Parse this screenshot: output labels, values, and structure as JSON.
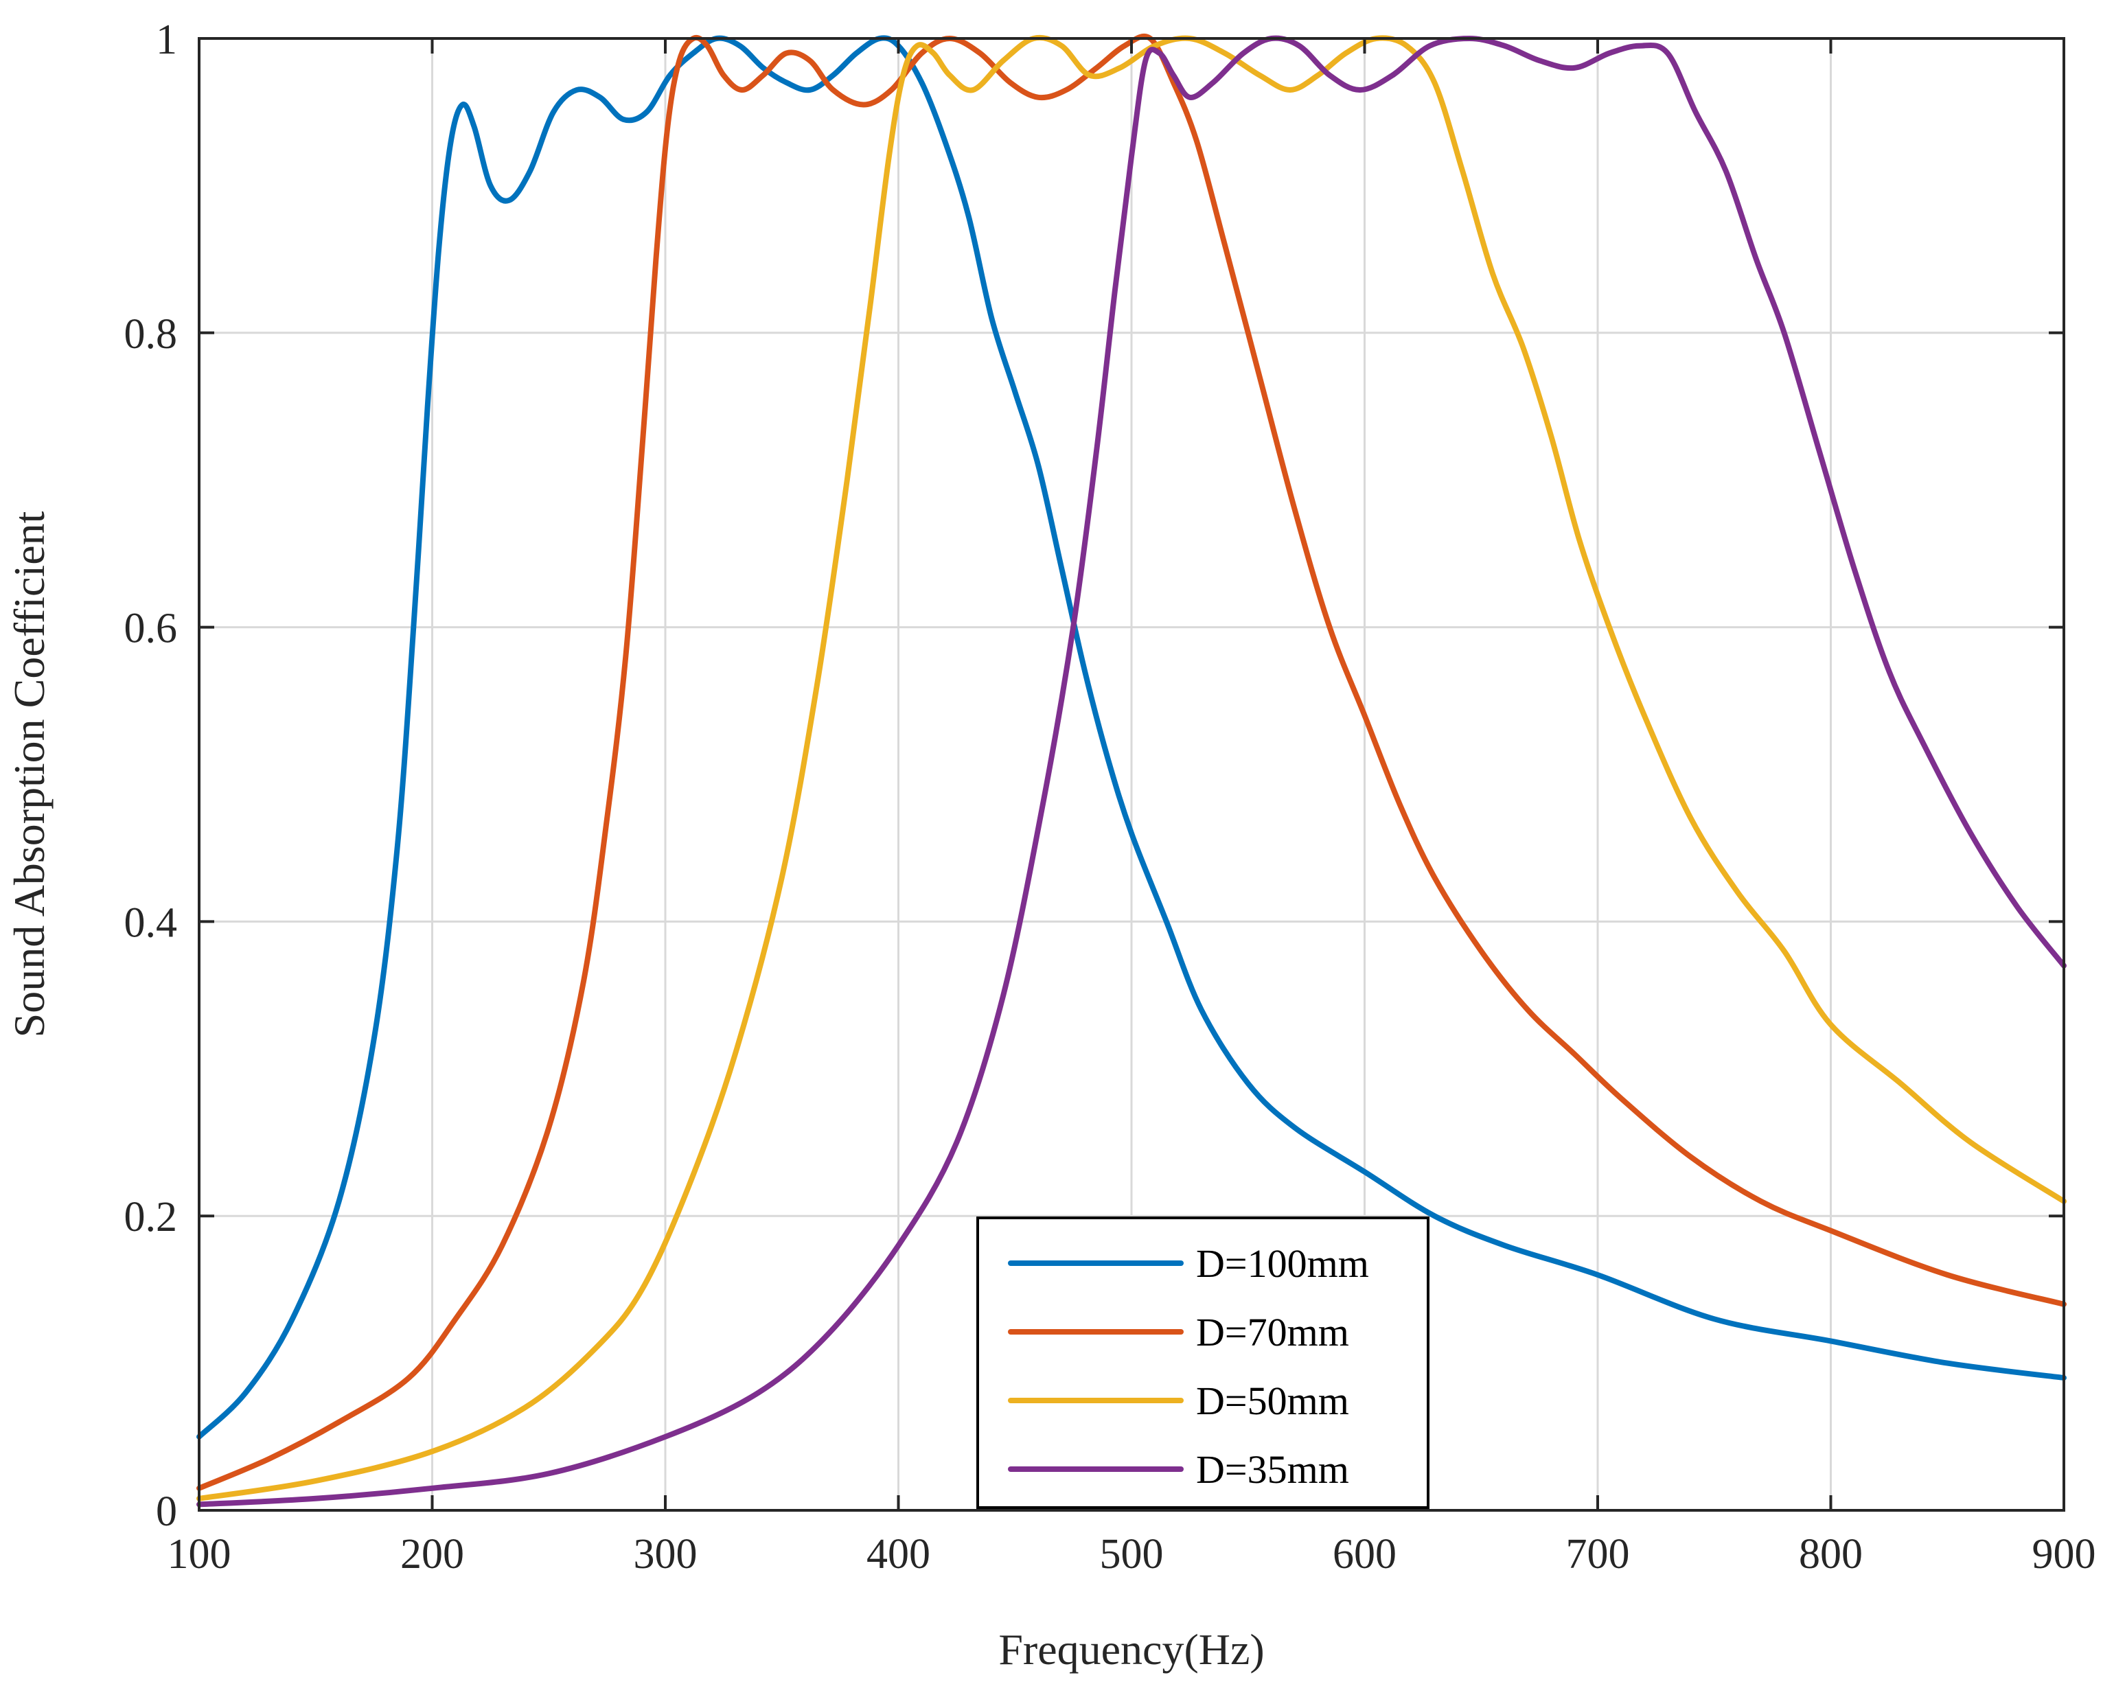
{
  "chart_data": {
    "type": "line",
    "title": "",
    "xlabel": "Frequency(Hz)",
    "ylabel": "Sound Absorption Coefficient",
    "xlim": [
      100,
      900
    ],
    "ylim": [
      0,
      1
    ],
    "x_ticks": [
      100,
      200,
      300,
      400,
      500,
      600,
      700,
      800,
      900
    ],
    "y_ticks": [
      0,
      0.2,
      0.4,
      0.6,
      0.8,
      1
    ],
    "y_tick_labels": [
      "0",
      "0.2",
      "0.4",
      "0.6",
      "0.8",
      "1"
    ],
    "grid": true,
    "legend_position": "bottom-center",
    "series": [
      {
        "name": "D=100mm",
        "color": "#0072BD",
        "points": [
          [
            100,
            0.05
          ],
          [
            120,
            0.08
          ],
          [
            140,
            0.13
          ],
          [
            160,
            0.21
          ],
          [
            175,
            0.32
          ],
          [
            185,
            0.45
          ],
          [
            192,
            0.6
          ],
          [
            198,
            0.75
          ],
          [
            203,
            0.86
          ],
          [
            208,
            0.93
          ],
          [
            213,
            0.955
          ],
          [
            218,
            0.94
          ],
          [
            225,
            0.9
          ],
          [
            233,
            0.89
          ],
          [
            242,
            0.91
          ],
          [
            252,
            0.95
          ],
          [
            262,
            0.965
          ],
          [
            272,
            0.96
          ],
          [
            282,
            0.945
          ],
          [
            292,
            0.95
          ],
          [
            302,
            0.975
          ],
          [
            312,
            0.99
          ],
          [
            322,
            1.0
          ],
          [
            332,
            0.995
          ],
          [
            342,
            0.98
          ],
          [
            352,
            0.97
          ],
          [
            362,
            0.965
          ],
          [
            372,
            0.975
          ],
          [
            382,
            0.99
          ],
          [
            392,
            1.0
          ],
          [
            400,
            0.995
          ],
          [
            410,
            0.97
          ],
          [
            420,
            0.93
          ],
          [
            430,
            0.88
          ],
          [
            440,
            0.81
          ],
          [
            450,
            0.76
          ],
          [
            460,
            0.71
          ],
          [
            470,
            0.64
          ],
          [
            480,
            0.57
          ],
          [
            490,
            0.51
          ],
          [
            500,
            0.46
          ],
          [
            515,
            0.4
          ],
          [
            530,
            0.34
          ],
          [
            550,
            0.29
          ],
          [
            570,
            0.26
          ],
          [
            600,
            0.23
          ],
          [
            630,
            0.2
          ],
          [
            660,
            0.18
          ],
          [
            700,
            0.16
          ],
          [
            750,
            0.13
          ],
          [
            800,
            0.115
          ],
          [
            850,
            0.1
          ],
          [
            900,
            0.09
          ]
        ]
      },
      {
        "name": "D=70mm",
        "color": "#D95319",
        "points": [
          [
            100,
            0.015
          ],
          [
            130,
            0.035
          ],
          [
            160,
            0.06
          ],
          [
            190,
            0.09
          ],
          [
            210,
            0.13
          ],
          [
            230,
            0.18
          ],
          [
            250,
            0.26
          ],
          [
            265,
            0.36
          ],
          [
            275,
            0.47
          ],
          [
            283,
            0.58
          ],
          [
            290,
            0.72
          ],
          [
            296,
            0.85
          ],
          [
            301,
            0.94
          ],
          [
            306,
            0.985
          ],
          [
            312,
            1.0
          ],
          [
            318,
            0.995
          ],
          [
            325,
            0.975
          ],
          [
            333,
            0.965
          ],
          [
            342,
            0.975
          ],
          [
            352,
            0.99
          ],
          [
            362,
            0.985
          ],
          [
            372,
            0.965
          ],
          [
            385,
            0.955
          ],
          [
            397,
            0.965
          ],
          [
            410,
            0.99
          ],
          [
            422,
            1.0
          ],
          [
            435,
            0.99
          ],
          [
            448,
            0.97
          ],
          [
            460,
            0.96
          ],
          [
            472,
            0.965
          ],
          [
            485,
            0.98
          ],
          [
            497,
            0.995
          ],
          [
            508,
            1.0
          ],
          [
            518,
            0.97
          ],
          [
            528,
            0.93
          ],
          [
            540,
            0.86
          ],
          [
            555,
            0.77
          ],
          [
            570,
            0.68
          ],
          [
            585,
            0.6
          ],
          [
            600,
            0.54
          ],
          [
            615,
            0.48
          ],
          [
            630,
            0.43
          ],
          [
            650,
            0.38
          ],
          [
            670,
            0.34
          ],
          [
            690,
            0.31
          ],
          [
            710,
            0.28
          ],
          [
            740,
            0.24
          ],
          [
            770,
            0.21
          ],
          [
            800,
            0.19
          ],
          [
            850,
            0.16
          ],
          [
            900,
            0.14
          ]
        ]
      },
      {
        "name": "D=50mm",
        "color": "#EDB120",
        "points": [
          [
            100,
            0.008
          ],
          [
            150,
            0.02
          ],
          [
            200,
            0.04
          ],
          [
            240,
            0.07
          ],
          [
            270,
            0.11
          ],
          [
            290,
            0.15
          ],
          [
            310,
            0.22
          ],
          [
            330,
            0.31
          ],
          [
            350,
            0.43
          ],
          [
            365,
            0.56
          ],
          [
            378,
            0.7
          ],
          [
            388,
            0.82
          ],
          [
            396,
            0.92
          ],
          [
            402,
            0.975
          ],
          [
            408,
            0.995
          ],
          [
            415,
            0.99
          ],
          [
            422,
            0.975
          ],
          [
            432,
            0.965
          ],
          [
            445,
            0.985
          ],
          [
            458,
            1.0
          ],
          [
            470,
            0.995
          ],
          [
            482,
            0.975
          ],
          [
            495,
            0.98
          ],
          [
            510,
            0.995
          ],
          [
            525,
            1.0
          ],
          [
            540,
            0.99
          ],
          [
            555,
            0.975
          ],
          [
            568,
            0.965
          ],
          [
            580,
            0.975
          ],
          [
            592,
            0.99
          ],
          [
            605,
            1.0
          ],
          [
            618,
            0.995
          ],
          [
            630,
            0.97
          ],
          [
            642,
            0.91
          ],
          [
            655,
            0.84
          ],
          [
            668,
            0.79
          ],
          [
            680,
            0.73
          ],
          [
            692,
            0.66
          ],
          [
            705,
            0.6
          ],
          [
            720,
            0.54
          ],
          [
            740,
            0.47
          ],
          [
            760,
            0.42
          ],
          [
            780,
            0.38
          ],
          [
            800,
            0.33
          ],
          [
            830,
            0.29
          ],
          [
            860,
            0.25
          ],
          [
            900,
            0.21
          ]
        ]
      },
      {
        "name": "D=35mm",
        "color": "#7E2F8E",
        "points": [
          [
            100,
            0.004
          ],
          [
            150,
            0.008
          ],
          [
            200,
            0.015
          ],
          [
            250,
            0.025
          ],
          [
            300,
            0.05
          ],
          [
            340,
            0.08
          ],
          [
            370,
            0.12
          ],
          [
            400,
            0.18
          ],
          [
            425,
            0.25
          ],
          [
            445,
            0.35
          ],
          [
            462,
            0.48
          ],
          [
            475,
            0.6
          ],
          [
            485,
            0.72
          ],
          [
            493,
            0.83
          ],
          [
            500,
            0.92
          ],
          [
            506,
            0.985
          ],
          [
            512,
            0.99
          ],
          [
            518,
            0.975
          ],
          [
            525,
            0.96
          ],
          [
            535,
            0.97
          ],
          [
            548,
            0.99
          ],
          [
            560,
            1.0
          ],
          [
            572,
            0.995
          ],
          [
            585,
            0.975
          ],
          [
            598,
            0.965
          ],
          [
            612,
            0.975
          ],
          [
            628,
            0.995
          ],
          [
            645,
            1.0
          ],
          [
            660,
            0.995
          ],
          [
            675,
            0.985
          ],
          [
            690,
            0.98
          ],
          [
            705,
            0.99
          ],
          [
            718,
            0.995
          ],
          [
            730,
            0.99
          ],
          [
            742,
            0.95
          ],
          [
            755,
            0.91
          ],
          [
            768,
            0.85
          ],
          [
            780,
            0.8
          ],
          [
            795,
            0.72
          ],
          [
            810,
            0.64
          ],
          [
            825,
            0.57
          ],
          [
            840,
            0.52
          ],
          [
            860,
            0.46
          ],
          [
            880,
            0.41
          ],
          [
            900,
            0.37
          ]
        ]
      }
    ]
  }
}
